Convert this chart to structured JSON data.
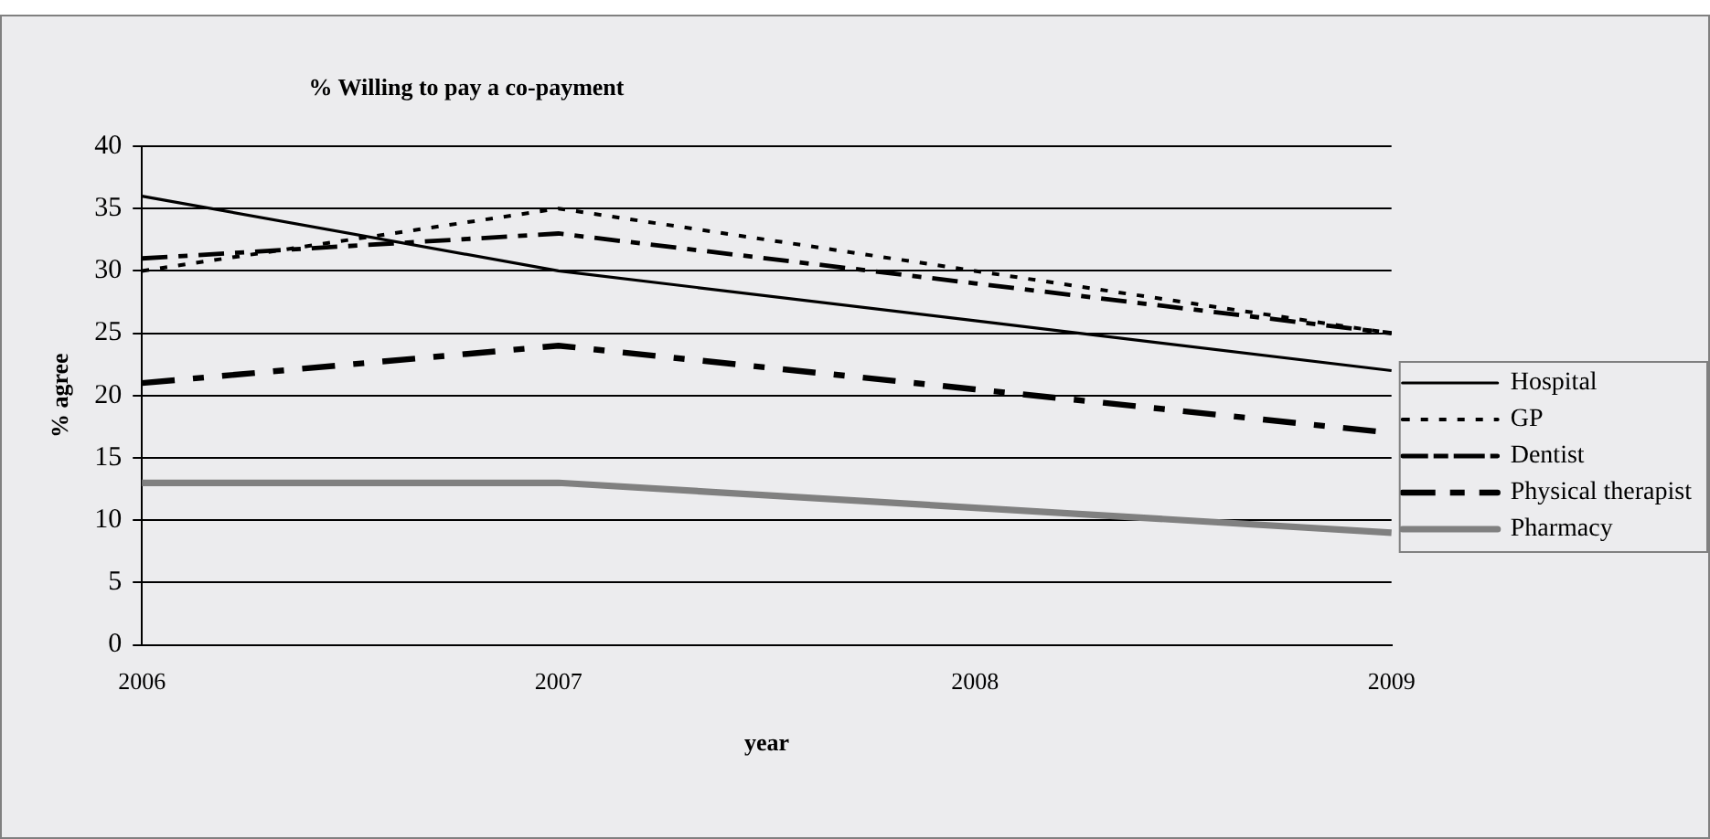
{
  "chart_data": {
    "type": "line",
    "title": "% Willing to pay a co-payment",
    "xlabel": "year",
    "ylabel": "% agree",
    "categories": [
      "2006",
      "2007",
      "2008",
      "2009"
    ],
    "ylim": [
      0,
      40
    ],
    "yticks": [
      0,
      5,
      10,
      15,
      20,
      25,
      30,
      35,
      40
    ],
    "grid": "y",
    "legend": "right",
    "marker": "none",
    "series": [
      {
        "name": "Hospital",
        "color": "#000000",
        "line_style": "solid",
        "values": [
          36,
          30,
          26,
          22
        ]
      },
      {
        "name": "GP",
        "color": "#000000",
        "line_style": "dotted",
        "values": [
          30,
          35,
          30,
          25
        ]
      },
      {
        "name": "Dentist",
        "color": "#000000",
        "line_style": "dashed",
        "values": [
          31,
          33,
          29,
          25
        ]
      },
      {
        "name": "Physical therapist",
        "color": "#000000",
        "line_style": "dashed",
        "values": [
          21,
          24,
          20.5,
          17
        ]
      },
      {
        "name": "Pharmacy",
        "color": "#808080",
        "line_style": "solid",
        "values": [
          13,
          13,
          11,
          9
        ]
      }
    ]
  }
}
